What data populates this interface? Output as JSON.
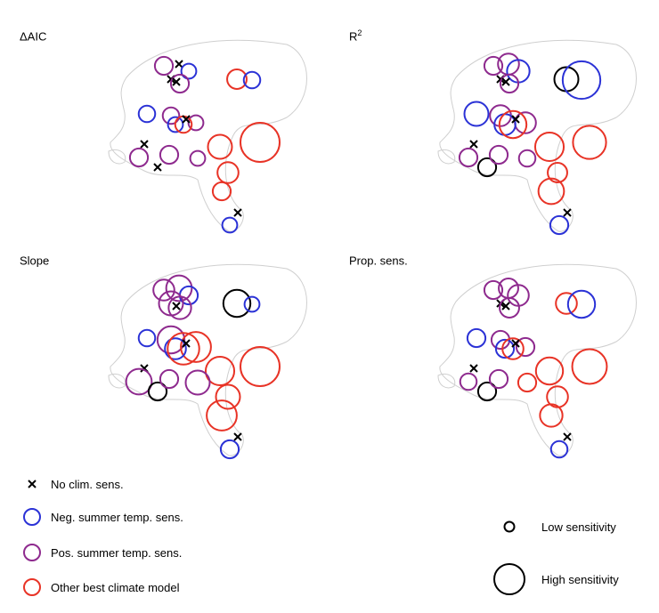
{
  "chart_data": [
    {
      "type": "scatter",
      "title": "ΔAIC",
      "title_sup": "",
      "points": [
        {
          "site": 1,
          "cat": "none"
        },
        {
          "site": 2,
          "cat": "pos",
          "s": 0.3
        },
        {
          "site": 3,
          "cat": "neg",
          "s": 0.2
        },
        {
          "site": 4,
          "cat": "none"
        },
        {
          "site": 5,
          "cat": "pos",
          "s": 0.3
        },
        {
          "site": 6,
          "cat": "none"
        },
        {
          "site": 7,
          "cat": "other",
          "s": 0.35
        },
        {
          "site": 8,
          "cat": "neg",
          "s": 0.25
        },
        {
          "site": 9,
          "cat": "neg",
          "s": 0.25
        },
        {
          "site": 10,
          "cat": "pos",
          "s": 0.25
        },
        {
          "site": 11,
          "cat": "pos",
          "s": 0.2
        },
        {
          "site": 12,
          "cat": "neg",
          "s": 0.2
        },
        {
          "site": 13,
          "cat": "other",
          "s": 0.25
        },
        {
          "site": 14,
          "cat": "none"
        },
        {
          "site": 15,
          "cat": "other",
          "s": 0.5
        },
        {
          "site": 16,
          "cat": "other",
          "s": 1.0
        },
        {
          "site": 17,
          "cat": "none"
        },
        {
          "site": 18,
          "cat": "pos",
          "s": 0.3
        },
        {
          "site": 19,
          "cat": "none"
        },
        {
          "site": 20,
          "cat": "pos",
          "s": 0.3
        },
        {
          "site": 21,
          "cat": "pos",
          "s": 0.2
        },
        {
          "site": 22,
          "cat": "other",
          "s": 0.4
        },
        {
          "site": 23,
          "cat": "other",
          "s": 0.3
        },
        {
          "site": 24,
          "cat": "none"
        },
        {
          "site": 25,
          "cat": "neg",
          "s": 0.2
        }
      ]
    },
    {
      "type": "scatter",
      "title": "R",
      "title_sup": "2",
      "points": [
        {
          "site": 1,
          "cat": "pos",
          "s": 0.4
        },
        {
          "site": 2,
          "cat": "pos",
          "s": 0.3
        },
        {
          "site": 3,
          "cat": "neg",
          "s": 0.45
        },
        {
          "site": 4,
          "cat": "none"
        },
        {
          "site": 5,
          "cat": "pos",
          "s": 0.3
        },
        {
          "site": 6,
          "cat": "none"
        },
        {
          "site": 7,
          "cat": "none",
          "s": 0.5
        },
        {
          "site": 8,
          "cat": "neg",
          "s": 0.95
        },
        {
          "site": 9,
          "cat": "neg",
          "s": 0.5
        },
        {
          "site": 10,
          "cat": "pos",
          "s": 0.4
        },
        {
          "site": 11,
          "cat": "pos",
          "s": 0.4
        },
        {
          "site": 12,
          "cat": "neg",
          "s": 0.4
        },
        {
          "site": 13,
          "cat": "other",
          "s": 0.6
        },
        {
          "site": 14,
          "cat": "none"
        },
        {
          "site": 15,
          "cat": "other",
          "s": 0.65
        },
        {
          "site": 16,
          "cat": "other",
          "s": 0.8
        },
        {
          "site": 17,
          "cat": "none"
        },
        {
          "site": 18,
          "cat": "pos",
          "s": 0.3
        },
        {
          "site": 19,
          "cat": "none",
          "s": 0.3
        },
        {
          "site": 20,
          "cat": "pos",
          "s": 0.3
        },
        {
          "site": 21,
          "cat": "pos",
          "s": 0.25
        },
        {
          "site": 22,
          "cat": "other",
          "s": 0.35
        },
        {
          "site": 23,
          "cat": "other",
          "s": 0.55
        },
        {
          "site": 24,
          "cat": "none"
        },
        {
          "site": 25,
          "cat": "neg",
          "s": 0.3
        }
      ]
    },
    {
      "type": "scatter",
      "title": "Slope",
      "title_sup": "",
      "points": [
        {
          "site": 1,
          "cat": "pos",
          "s": 0.55
        },
        {
          "site": 2,
          "cat": "pos",
          "s": 0.4
        },
        {
          "site": 3,
          "cat": "neg",
          "s": 0.3
        },
        {
          "site": 4,
          "cat": "pos",
          "s": 0.5
        },
        {
          "site": 5,
          "cat": "pos",
          "s": 0.45
        },
        {
          "site": 6,
          "cat": "none"
        },
        {
          "site": 7,
          "cat": "none",
          "s": 0.6
        },
        {
          "site": 8,
          "cat": "neg",
          "s": 0.2
        },
        {
          "site": 9,
          "cat": "neg",
          "s": 0.25
        },
        {
          "site": 10,
          "cat": "pos",
          "s": 0.6
        },
        {
          "site": 11,
          "cat": "other",
          "s": 0.7
        },
        {
          "site": 12,
          "cat": "neg",
          "s": 0.4
        },
        {
          "site": 13,
          "cat": "other",
          "s": 0.75
        },
        {
          "site": 14,
          "cat": "none"
        },
        {
          "site": 15,
          "cat": "other",
          "s": 0.65
        },
        {
          "site": 16,
          "cat": "other",
          "s": 1.0
        },
        {
          "site": 17,
          "cat": "none"
        },
        {
          "site": 18,
          "cat": "pos",
          "s": 0.55
        },
        {
          "site": 19,
          "cat": "none",
          "s": 0.3
        },
        {
          "site": 20,
          "cat": "pos",
          "s": 0.3
        },
        {
          "site": 21,
          "cat": "pos",
          "s": 0.5
        },
        {
          "site": 22,
          "cat": "other",
          "s": 0.5
        },
        {
          "site": 23,
          "cat": "other",
          "s": 0.7
        },
        {
          "site": 24,
          "cat": "none"
        },
        {
          "site": 25,
          "cat": "neg",
          "s": 0.3
        }
      ]
    },
    {
      "type": "scatter",
      "title": "Prop. sens.",
      "title_sup": "",
      "points": [
        {
          "site": 1,
          "cat": "pos",
          "s": 0.35
        },
        {
          "site": 2,
          "cat": "pos",
          "s": 0.3
        },
        {
          "site": 3,
          "cat": "pos",
          "s": 0.4
        },
        {
          "site": 4,
          "cat": "none"
        },
        {
          "site": 5,
          "cat": "pos",
          "s": 0.35
        },
        {
          "site": 6,
          "cat": "none"
        },
        {
          "site": 7,
          "cat": "other",
          "s": 0.4
        },
        {
          "site": 8,
          "cat": "neg",
          "s": 0.6
        },
        {
          "site": 9,
          "cat": "neg",
          "s": 0.3
        },
        {
          "site": 10,
          "cat": "pos",
          "s": 0.3
        },
        {
          "site": 11,
          "cat": "pos",
          "s": 0.3
        },
        {
          "site": 12,
          "cat": "neg",
          "s": 0.3
        },
        {
          "site": 13,
          "cat": "other",
          "s": 0.4
        },
        {
          "site": 14,
          "cat": "none"
        },
        {
          "site": 15,
          "cat": "other",
          "s": 0.6
        },
        {
          "site": 16,
          "cat": "other",
          "s": 0.85
        },
        {
          "site": 17,
          "cat": "none"
        },
        {
          "site": 18,
          "cat": "pos",
          "s": 0.25
        },
        {
          "site": 19,
          "cat": "none",
          "s": 0.3
        },
        {
          "site": 20,
          "cat": "pos",
          "s": 0.3
        },
        {
          "site": 21,
          "cat": "other",
          "s": 0.3
        },
        {
          "site": 22,
          "cat": "other",
          "s": 0.4
        },
        {
          "site": 23,
          "cat": "other",
          "s": 0.45
        },
        {
          "site": 24,
          "cat": "none"
        },
        {
          "site": 25,
          "cat": "neg",
          "s": 0.25
        }
      ]
    }
  ],
  "legend": {
    "categories": [
      {
        "key": "none",
        "label": "No clim. sens."
      },
      {
        "key": "neg",
        "label": "Neg. summer temp. sens."
      },
      {
        "key": "pos",
        "label": "Pos. summer temp. sens."
      },
      {
        "key": "other",
        "label": "Other best climate model"
      }
    ],
    "size_low": "Low sensitivity",
    "size_high": "High sensitivity"
  },
  "colors": {
    "none": "#000000",
    "neg": "#2b32d6",
    "pos": "#8e2a8e",
    "other": "#e83326",
    "map": "#cfcfcf"
  }
}
